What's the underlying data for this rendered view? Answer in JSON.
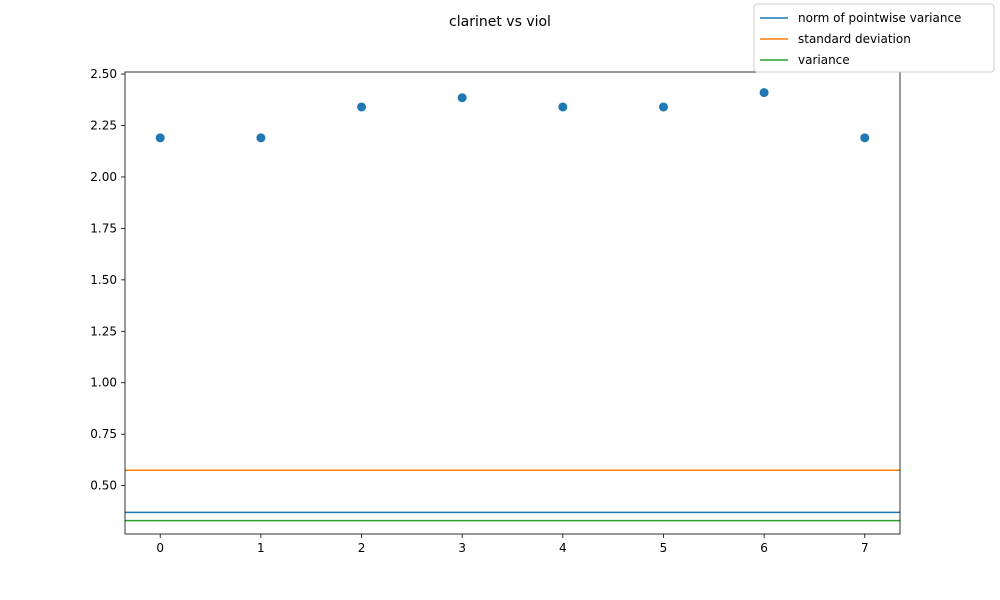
{
  "chart_data": {
    "type": "scatter",
    "title": "clarinet vs viol",
    "xlabel": "",
    "ylabel": "",
    "xlim": [
      -0.35,
      7.35
    ],
    "ylim": [
      0.265,
      2.51
    ],
    "xticks": [
      "0",
      "1",
      "2",
      "3",
      "4",
      "5",
      "6",
      "7"
    ],
    "yticks": [
      "0.50",
      "0.75",
      "1.00",
      "1.25",
      "1.50",
      "1.75",
      "2.00",
      "2.25",
      "2.50"
    ],
    "points": {
      "x": [
        0,
        1,
        2,
        3,
        4,
        5,
        6,
        7
      ],
      "y": [
        2.19,
        2.19,
        2.34,
        2.385,
        2.34,
        2.34,
        2.41,
        2.19
      ],
      "color": "#1f77b4"
    },
    "hlines": [
      {
        "name": "norm of pointwise variance",
        "y": 0.37,
        "color": "#1f77b4"
      },
      {
        "name": "standard deviation",
        "y": 0.575,
        "color": "#ff7f0e"
      },
      {
        "name": "variance",
        "y": 0.33,
        "color": "#2ca02c"
      }
    ],
    "grid": false,
    "legend_position": "top-right"
  }
}
